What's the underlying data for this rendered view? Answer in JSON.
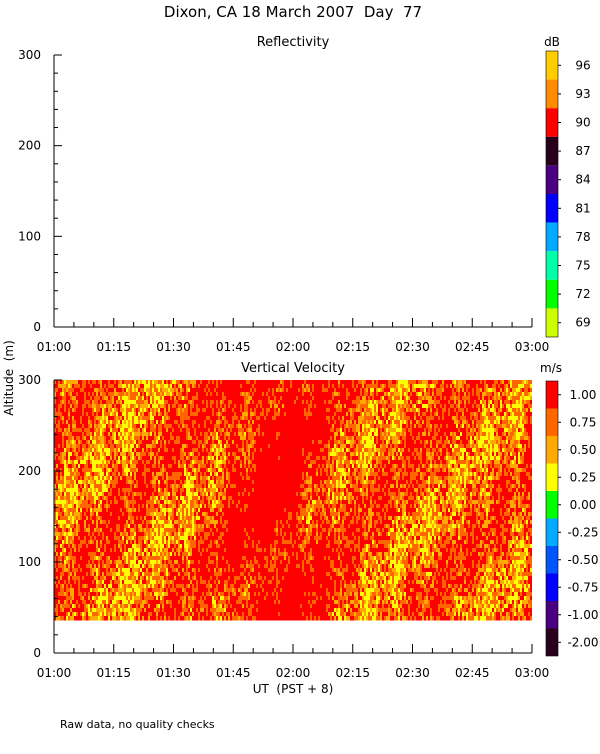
{
  "figure_title": "Dixon, CA 18 March 2007  Day  77",
  "footnote": "Raw data, no quality checks",
  "x_axis_label": "UT  (PST + 8)",
  "y_axis_label": "Altitude  (m)",
  "chart_data": [
    {
      "type": "heatmap",
      "title": "Reflectivity",
      "x_ticks": [
        "01:00",
        "01:15",
        "01:30",
        "01:45",
        "02:00",
        "02:15",
        "02:30",
        "02:45",
        "03:00"
      ],
      "xlim": [
        "01:00",
        "03:00"
      ],
      "ylim": [
        0,
        300
      ],
      "y_ticks": [
        0,
        100,
        200,
        300
      ],
      "colorbar": {
        "unit": "dB",
        "tick_labels": [
          "96",
          "93",
          "90",
          "87",
          "84",
          "81",
          "78",
          "75",
          "72",
          "69"
        ],
        "colors": [
          "#ffcc00",
          "#ff8c00",
          "#ff0000",
          "#2a001a",
          "#4b0082",
          "#0000ff",
          "#00aaff",
          "#00ffaa",
          "#00ff00",
          "#ccff00"
        ]
      },
      "data": "no echoes shown"
    },
    {
      "type": "heatmap",
      "title": "Vertical Velocity",
      "x_ticks": [
        "01:00",
        "01:15",
        "01:30",
        "01:45",
        "02:00",
        "02:15",
        "02:30",
        "02:45",
        "03:00"
      ],
      "xlim": [
        "01:00",
        "03:00"
      ],
      "ylim": [
        0,
        300
      ],
      "y_ticks": [
        0,
        100,
        200,
        300
      ],
      "data_altitude_range": [
        40,
        300
      ],
      "typical_velocity_range": [
        0.5,
        1.25
      ],
      "strongest_updraft_period": [
        "01:45",
        "02:05"
      ],
      "colorbar": {
        "unit": "m/s",
        "tick_labels": [
          "1.00",
          "0.75",
          "0.50",
          "0.25",
          "0.00",
          "-0.25",
          "-0.50",
          "-0.75",
          "-1.00",
          "-2.00"
        ],
        "colors": [
          "#ff0000",
          "#ff6600",
          "#ffaa00",
          "#ffff00",
          "#00ff00",
          "#00aaff",
          "#0055ff",
          "#0000ff",
          "#4b0082",
          "#2a001a"
        ]
      }
    }
  ]
}
